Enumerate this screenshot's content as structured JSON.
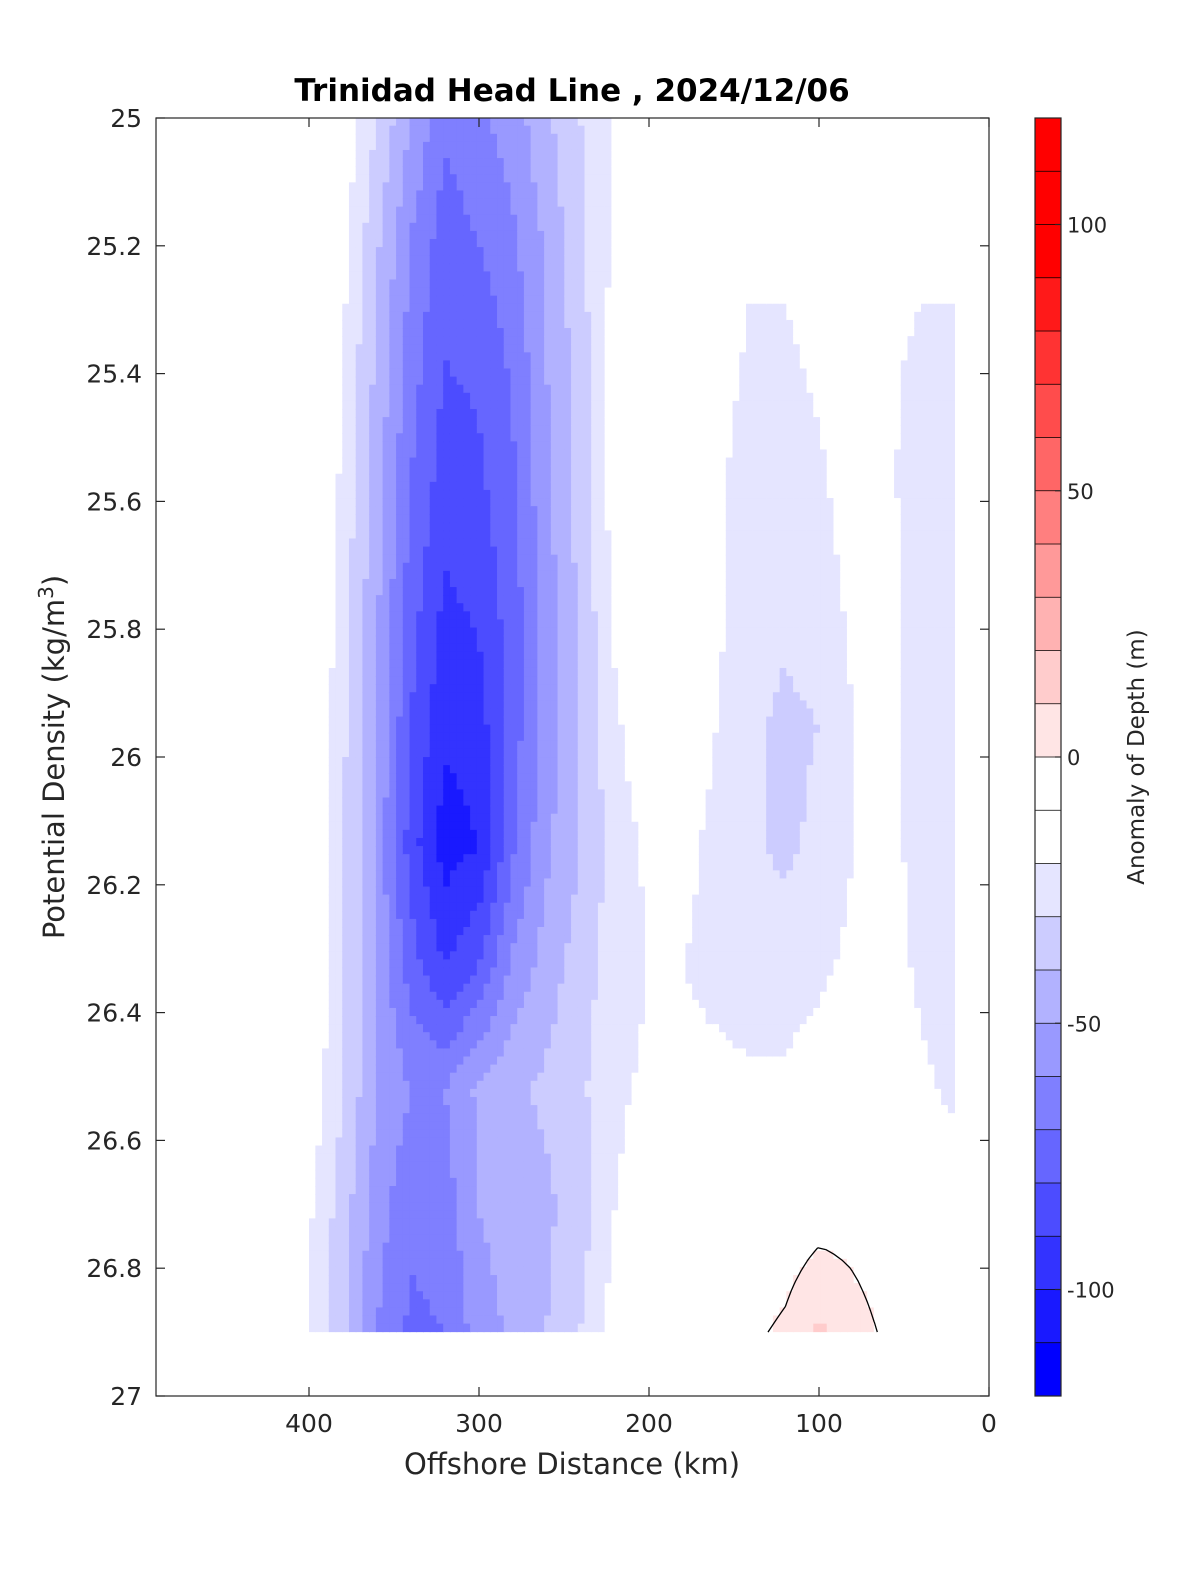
{
  "chart_data": {
    "type": "heatmap",
    "subtype": "filled-contour",
    "title": "Trinidad Head Line , 2024/12/06",
    "xlabel": "Offshore Distance (km)",
    "ylabel_main": "Potential Density (kg/m",
    "ylabel_sup": "3",
    "ylabel_end": ")",
    "xlim": [
      490,
      0
    ],
    "x_reversed": true,
    "ylim": [
      25,
      27
    ],
    "y_reversed": true,
    "x_ticks": [
      400,
      300,
      200,
      100,
      0
    ],
    "x_tick_labels": [
      "400",
      "300",
      "200",
      "100",
      "0"
    ],
    "y_ticks": [
      25,
      25.2,
      25.4,
      25.6,
      25.8,
      26,
      26.2,
      26.4,
      26.6,
      26.8,
      27
    ],
    "y_tick_labels": [
      "25",
      "25.2",
      "25.4",
      "25.6",
      "25.8",
      "26",
      "26.2",
      "26.4",
      "26.6",
      "26.8",
      "27"
    ],
    "data_extent": {
      "x": [
        20,
        400
      ],
      "y": [
        25,
        26.9
      ]
    },
    "grid": false,
    "colorbar": {
      "label": "Anomaly of Depth (m)",
      "range": [
        -120,
        120
      ],
      "step": 10,
      "tick_values": [
        100,
        50,
        0,
        -50,
        -100
      ],
      "tick_labels": [
        "100",
        "50",
        "0",
        "-50",
        "-100"
      ],
      "colors_low_to_high": [
        "#0000ff",
        "#1919ff",
        "#3333ff",
        "#4c4cff",
        "#6666ff",
        "#7f7fff",
        "#9999ff",
        "#b2b2ff",
        "#ccccff",
        "#e5e5ff",
        "#ffffff",
        "#ffffff",
        "#ffe5e5",
        "#ffcccc",
        "#ffb2b2",
        "#ff9999",
        "#ff7f7f",
        "#ff6666",
        "#ff4c4c",
        "#ff3333",
        "#ff1919",
        "#ff0000",
        "#ff0000",
        "#ff0000"
      ]
    },
    "columns": [
      {
        "x": 400,
        "values": [
          -5,
          -5,
          -5,
          -5,
          -5,
          -5,
          -5,
          -8,
          -12,
          -18,
          -22
        ]
      },
      {
        "x": 380,
        "values": [
          -12,
          -16,
          -20,
          -22,
          -25,
          -28,
          -28,
          -28,
          -30,
          -35,
          -38
        ]
      },
      {
        "x": 360,
        "values": [
          -30,
          -38,
          -42,
          -45,
          -48,
          -50,
          -52,
          -52,
          -50,
          -55,
          -60
        ]
      },
      {
        "x": 340,
        "values": [
          -50,
          -60,
          -65,
          -70,
          -75,
          -80,
          -85,
          -75,
          -60,
          -68,
          -72
        ]
      },
      {
        "x": 320,
        "values": [
          -68,
          -75,
          -80,
          -85,
          -92,
          -98,
          -105,
          -90,
          -60,
          -65,
          -70
        ]
      },
      {
        "x": 300,
        "values": [
          -62,
          -70,
          -78,
          -82,
          -88,
          -95,
          -100,
          -80,
          -48,
          -50,
          -55
        ]
      },
      {
        "x": 280,
        "values": [
          -55,
          -62,
          -68,
          -72,
          -75,
          -75,
          -72,
          -58,
          -42,
          -45,
          -48
        ]
      },
      {
        "x": 260,
        "values": [
          -42,
          -48,
          -50,
          -52,
          -55,
          -55,
          -52,
          -45,
          -38,
          -42,
          -40
        ]
      },
      {
        "x": 240,
        "values": [
          -30,
          -32,
          -35,
          -35,
          -38,
          -40,
          -40,
          -35,
          -32,
          -35,
          -30
        ]
      },
      {
        "x": 220,
        "values": [
          -18,
          -18,
          -15,
          -15,
          -18,
          -22,
          -25,
          -25,
          -22,
          -20,
          -15
        ]
      },
      {
        "x": 200,
        "values": [
          -5,
          -5,
          -12,
          -15,
          -12,
          -12,
          -18,
          -20,
          -18,
          -15,
          -8
        ]
      },
      {
        "x": 180,
        "values": [
          -5,
          -5,
          -12,
          -15,
          -15,
          -15,
          -18,
          -20,
          -18,
          -12,
          -5
        ]
      },
      {
        "x": 160,
        "values": [
          -12,
          -12,
          -15,
          -18,
          -18,
          -20,
          -22,
          -22,
          -18,
          -10,
          -2
        ]
      },
      {
        "x": 140,
        "values": [
          -15,
          -18,
          -22,
          -25,
          -25,
          -28,
          -28,
          -25,
          -18,
          -10,
          -2
        ]
      },
      {
        "x": 120,
        "values": [
          -15,
          -18,
          -22,
          -25,
          -28,
          -32,
          -32,
          -25,
          -18,
          -8,
          2
        ]
      },
      {
        "x": 100,
        "values": [
          -12,
          -15,
          -18,
          -22,
          -25,
          -30,
          -28,
          -22,
          -15,
          -5,
          12
        ]
      },
      {
        "x": 80,
        "values": [
          -5,
          -8,
          -12,
          -15,
          -18,
          -20,
          -20,
          -18,
          -12,
          -5,
          5
        ]
      },
      {
        "x": 60,
        "values": [
          -12,
          -15,
          -18,
          -18,
          -15,
          -15,
          -15,
          -15,
          -12,
          -8,
          -2
        ]
      },
      {
        "x": 40,
        "values": [
          -18,
          -18,
          -22,
          -25,
          -25,
          -25,
          -25,
          -22,
          -18,
          -12,
          -2
        ]
      },
      {
        "x": 20,
        "values": [
          -15,
          -18,
          -22,
          -28,
          -28,
          -28,
          -28,
          -25,
          -22,
          -15,
          -5
        ]
      }
    ]
  }
}
